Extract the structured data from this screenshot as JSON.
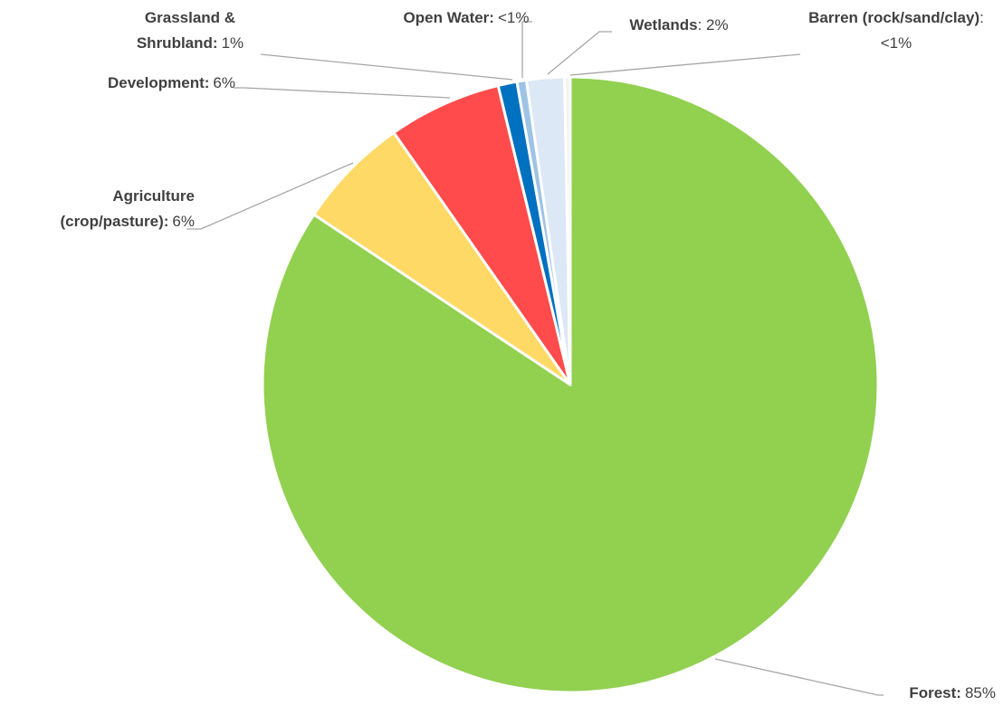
{
  "chart_data": {
    "type": "pie",
    "categories": [
      "Forest:",
      "Agriculture (crop/pasture):",
      "Development:",
      "Grassland & Shrubland:",
      "Open Water:",
      "Wetlands",
      "Barren (rock/sand/clay)"
    ],
    "values": [
      85,
      6,
      6,
      1,
      0.5,
      2,
      0.3
    ],
    "value_labels": [
      "85%",
      "6%",
      "6%",
      "1%",
      "<1%",
      ": 2%",
      ": <1%"
    ],
    "colors": [
      "#92d050",
      "#ffd966",
      "#ff4b4b",
      "#0070c0",
      "#9dc3e6",
      "#dde8f6",
      "#f2f2f2"
    ]
  }
}
